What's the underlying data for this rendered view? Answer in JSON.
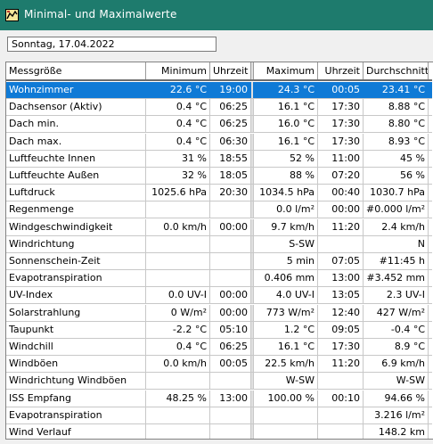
{
  "window": {
    "title": "Minimal- und Maximalwerte"
  },
  "date_field": {
    "value": "Sonntag, 17.04.2022"
  },
  "table": {
    "headers": [
      "Messgröße",
      "Minimum",
      "Uhrzeit",
      "Maximum",
      "Uhrzeit",
      "Durchschnitt"
    ],
    "rows": [
      [
        "Wohnzimmer",
        "22.6 °C",
        "19:00",
        "24.3 °C",
        "00:05",
        "23.41 °C"
      ],
      [
        "Dachsensor (Aktiv)",
        "0.4 °C",
        "06:25",
        "16.1 °C",
        "17:30",
        "8.88 °C"
      ],
      [
        "Dach min.",
        "0.4 °C",
        "06:25",
        "16.0 °C",
        "17:30",
        "8.80 °C"
      ],
      [
        "Dach max.",
        "0.4 °C",
        "06:30",
        "16.1 °C",
        "17:30",
        "8.93 °C"
      ],
      [
        "Luftfeuchte Innen",
        "31 %",
        "18:55",
        "52 %",
        "11:00",
        "45 %"
      ],
      [
        "Luftfeuchte Außen",
        "32 %",
        "18:05",
        "88 %",
        "07:20",
        "56 %"
      ],
      [
        "Luftdruck",
        "1025.6 hPa",
        "20:30",
        "1034.5 hPa",
        "00:40",
        "1030.7 hPa"
      ],
      [
        "Regenmenge",
        "",
        "",
        "0.0 l/m²",
        "00:00",
        "#0.000 l/m²"
      ],
      [
        "Windgeschwindigkeit",
        "0.0 km/h",
        "00:00",
        "9.7 km/h",
        "11:20",
        "2.4 km/h"
      ],
      [
        "Windrichtung",
        "",
        "",
        "S-SW",
        "",
        "N"
      ],
      [
        "Sonnenschein-Zeit",
        "",
        "",
        "5 min",
        "07:05",
        "#11:45 h"
      ],
      [
        "Evapotranspiration",
        "",
        "",
        "0.406 mm",
        "13:00",
        "#3.452 mm"
      ],
      [
        "UV-Index",
        "0.0 UV-I",
        "00:00",
        "4.0 UV-I",
        "13:05",
        "2.3 UV-I"
      ],
      [
        "Solarstrahlung",
        "0 W/m²",
        "00:00",
        "773 W/m²",
        "12:40",
        "427 W/m²"
      ],
      [
        "Taupunkt",
        "-2.2 °C",
        "05:10",
        "1.2 °C",
        "09:05",
        "-0.4 °C"
      ],
      [
        "Windchill",
        "0.4 °C",
        "06:25",
        "16.1 °C",
        "17:30",
        "8.9 °C"
      ],
      [
        "Windböen",
        "0.0 km/h",
        "00:05",
        "22.5 km/h",
        "11:20",
        "6.9 km/h"
      ],
      [
        "Windrichtung Windböen",
        "",
        "",
        "W-SW",
        "",
        "W-SW"
      ],
      [
        "ISS Empfang",
        "48.25 %",
        "13:00",
        "100.00 %",
        "00:10",
        "94.66 %"
      ],
      [
        "Evapotranspiration",
        "",
        "",
        "",
        "",
        "3.216 l/m²"
      ],
      [
        "Wind Verlauf",
        "",
        "",
        "",
        "",
        "148.2 km"
      ]
    ],
    "selected_row": 0
  }
}
